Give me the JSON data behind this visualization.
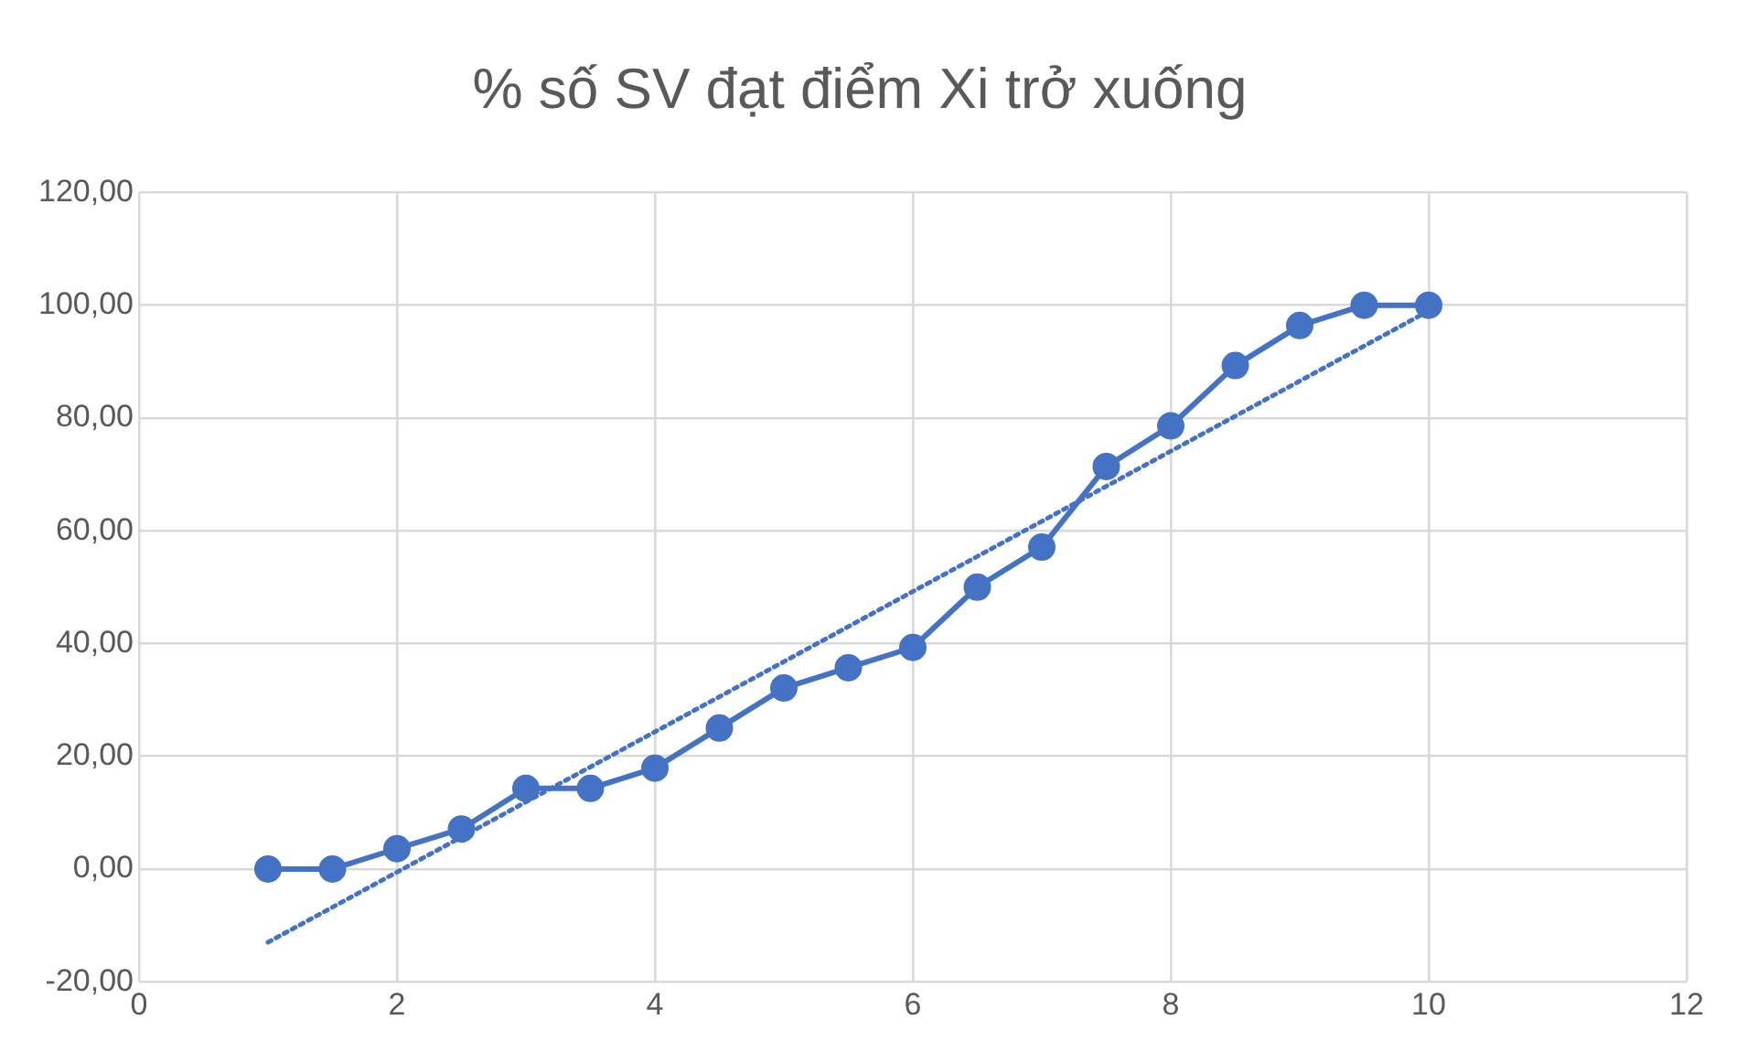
{
  "chart_data": {
    "type": "line",
    "title": "% số SV đạt điểm Xi trở xuống",
    "series": [
      {
        "color": "#4472c4",
        "marker": "circle",
        "line_style": "solid",
        "x": [
          1,
          1.5,
          2,
          2.5,
          3,
          3.5,
          4,
          4.5,
          5,
          5.5,
          6,
          6.5,
          7,
          7.5,
          8,
          8.5,
          9,
          9.5,
          10
        ],
        "values": [
          0,
          0,
          3.6,
          7.1,
          14.3,
          14.3,
          17.9,
          25,
          32.1,
          35.7,
          39.3,
          50,
          57.1,
          71.4,
          78.6,
          89.3,
          96.4,
          100,
          100
        ]
      },
      {
        "color": "#4472c4",
        "marker": "none",
        "line_style": "dotted",
        "x": [
          1,
          10
        ],
        "values": [
          -13,
          99
        ]
      }
    ],
    "xlim": [
      0,
      12
    ],
    "xticks": [
      0,
      2,
      4,
      6,
      8,
      10,
      12
    ],
    "ylim": [
      -20,
      120
    ],
    "yticks": [
      {
        "value": -20,
        "label": "-20,00"
      },
      {
        "value": 0,
        "label": "0,00"
      },
      {
        "value": 20,
        "label": "20,00"
      },
      {
        "value": 40,
        "label": "40,00"
      },
      {
        "value": 60,
        "label": "60,00"
      },
      {
        "value": 80,
        "label": "80,00"
      },
      {
        "value": 100,
        "label": "100,00"
      },
      {
        "value": 120,
        "label": "120,00"
      }
    ],
    "grid": true,
    "legend": false
  }
}
